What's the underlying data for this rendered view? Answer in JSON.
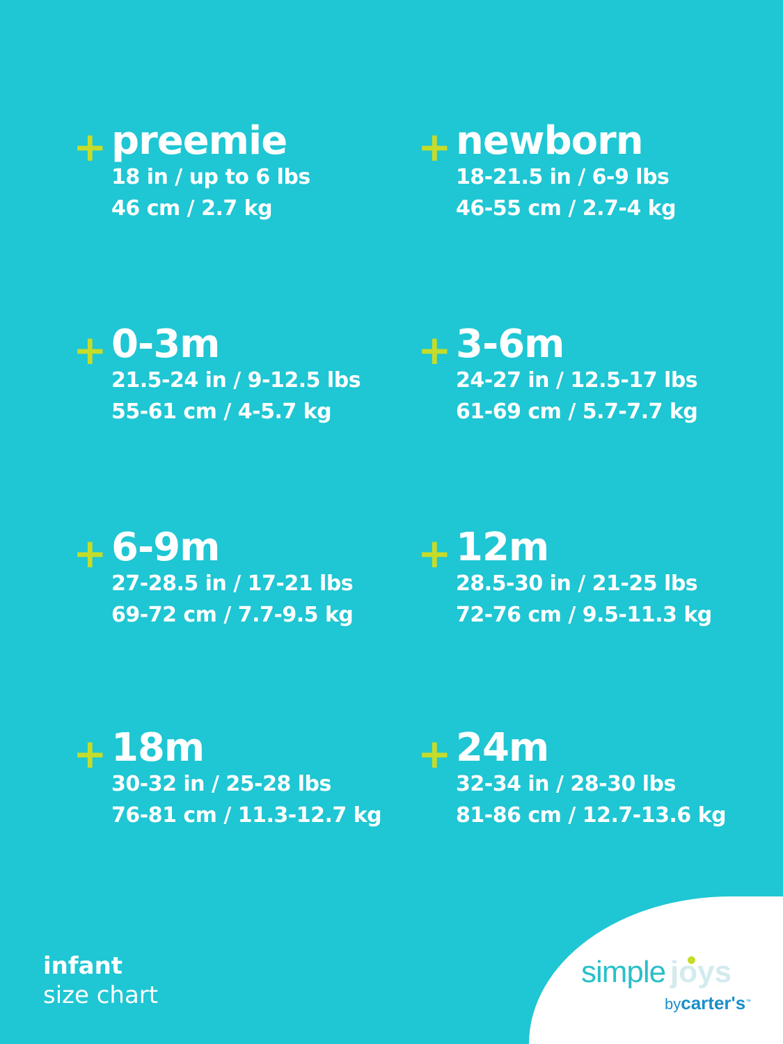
{
  "colors": {
    "background": "#1fc6d3",
    "plus": "#c5dc2a",
    "text": "#ffffff"
  },
  "sizes": [
    {
      "title": "preemie",
      "imperial": "18 in / up to 6 lbs",
      "metric": "46 cm / 2.7 kg"
    },
    {
      "title": "newborn",
      "imperial": "18-21.5 in / 6-9 lbs",
      "metric": "46-55 cm / 2.7-4 kg"
    },
    {
      "title": "0-3m",
      "imperial": "21.5-24 in / 9-12.5 lbs",
      "metric": "55-61 cm / 4-5.7 kg"
    },
    {
      "title": "3-6m",
      "imperial": "24-27 in / 12.5-17 lbs",
      "metric": "61-69 cm / 5.7-7.7 kg"
    },
    {
      "title": "6-9m",
      "imperial": "27-28.5 in / 17-21 lbs",
      "metric": "69-72 cm / 7.7-9.5 kg"
    },
    {
      "title": "12m",
      "imperial": "28.5-30 in / 21-25 lbs",
      "metric": "72-76 cm / 9.5-11.3 kg"
    },
    {
      "title": "18m",
      "imperial": "30-32 in / 25-28 lbs",
      "metric": "76-81 cm / 11.3-12.7 kg"
    },
    {
      "title": "24m",
      "imperial": "32-34 in / 28-30 lbs",
      "metric": "81-86 cm / 12.7-13.6 kg"
    }
  ],
  "plus_symbol": "+",
  "footer": {
    "line1": "infant",
    "line2": "size chart"
  },
  "logo": {
    "simple": "simple",
    "joys": "joys",
    "by": "by",
    "brand": "carter's",
    "tm": "™"
  }
}
